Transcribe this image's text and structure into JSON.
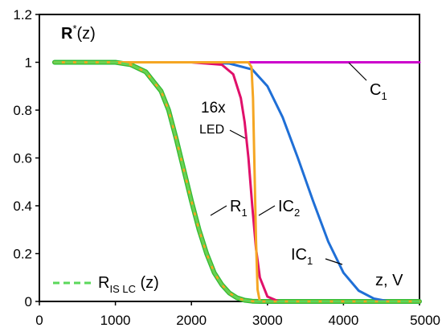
{
  "chart_data": {
    "type": "line",
    "title": "R*(z)",
    "title_parts": {
      "main": "R",
      "sup": "*",
      "rest": "(z)"
    },
    "xlabel": "z, V",
    "ylabel": "",
    "xlim": [
      0,
      5000
    ],
    "ylim": [
      0,
      1.2
    ],
    "x_ticks": [
      0,
      1000,
      2000,
      3000,
      4000,
      5000
    ],
    "y_ticks": [
      0,
      0.2,
      0.4,
      0.6,
      0.8,
      1,
      1.2
    ],
    "x_tick_labels": [
      "0",
      "1000",
      "2000",
      "3000",
      "4000",
      "5000"
    ],
    "y_tick_labels": [
      "0",
      "0.2",
      "0.4",
      "0.6",
      "0.8",
      "1",
      "1.2"
    ],
    "grid": false,
    "series": [
      {
        "name": "C1",
        "label_main": "C",
        "label_sub": "1",
        "color": "#cc00cc",
        "x": [
          200,
          1000,
          2000,
          3000,
          4000,
          5000
        ],
        "y": [
          1,
          1,
          1,
          1,
          1,
          1
        ]
      },
      {
        "name": "IC1",
        "label_main": "IC",
        "label_sub": "1",
        "color": "#1f6fd6",
        "x": [
          200,
          2000,
          2500,
          2800,
          3000,
          3200,
          3400,
          3600,
          3800,
          4000,
          4200,
          4400,
          4600,
          5000
        ],
        "y": [
          1,
          1,
          0.995,
          0.97,
          0.9,
          0.77,
          0.6,
          0.42,
          0.25,
          0.12,
          0.045,
          0.012,
          0,
          0
        ]
      },
      {
        "name": "16x LED",
        "label_line1": "16x",
        "label_line2": "LED",
        "color": "#e0106a",
        "x": [
          200,
          2000,
          2400,
          2550,
          2650,
          2700,
          2750,
          2800,
          2850,
          2900,
          3000,
          3150,
          5000
        ],
        "y": [
          1,
          1,
          0.99,
          0.95,
          0.85,
          0.75,
          0.6,
          0.4,
          0.22,
          0.1,
          0.02,
          0,
          0
        ]
      },
      {
        "name": "IC2",
        "label_main": "IC",
        "label_sub": "2",
        "color": "#f5a623",
        "x": [
          200,
          2500,
          2750,
          2790,
          2810,
          2830,
          2850,
          2870,
          2900,
          5000
        ],
        "y": [
          1,
          1,
          1,
          0.98,
          0.85,
          0.55,
          0.25,
          0.05,
          0,
          0
        ]
      },
      {
        "name": "R1",
        "label_main": "R",
        "label_sub": "1",
        "color": "#f5a623",
        "x": [
          200,
          1000,
          1200,
          1400,
          1600,
          1700,
          1800,
          1900,
          2000,
          2100,
          2200,
          2300,
          2400,
          2500,
          2600,
          2700,
          2800,
          2900,
          5000
        ],
        "y": [
          1,
          1,
          0.99,
          0.96,
          0.88,
          0.8,
          0.68,
          0.55,
          0.42,
          0.3,
          0.2,
          0.12,
          0.07,
          0.035,
          0.015,
          0.005,
          0.001,
          0,
          0
        ]
      },
      {
        "name": "RIS LC (z)",
        "label_main": "R",
        "label_sub": "IS LC",
        "label_rest": " (z)",
        "color": "#5ad85a",
        "dashed": true,
        "x": [
          200,
          1000,
          1200,
          1400,
          1600,
          1700,
          1800,
          1900,
          2000,
          2100,
          2200,
          2300,
          2400,
          2500,
          2600,
          2700,
          2800,
          2900,
          5000
        ],
        "y": [
          1,
          1,
          0.99,
          0.96,
          0.88,
          0.8,
          0.68,
          0.55,
          0.42,
          0.3,
          0.2,
          0.12,
          0.07,
          0.035,
          0.015,
          0.005,
          0.001,
          0,
          0
        ]
      }
    ]
  }
}
